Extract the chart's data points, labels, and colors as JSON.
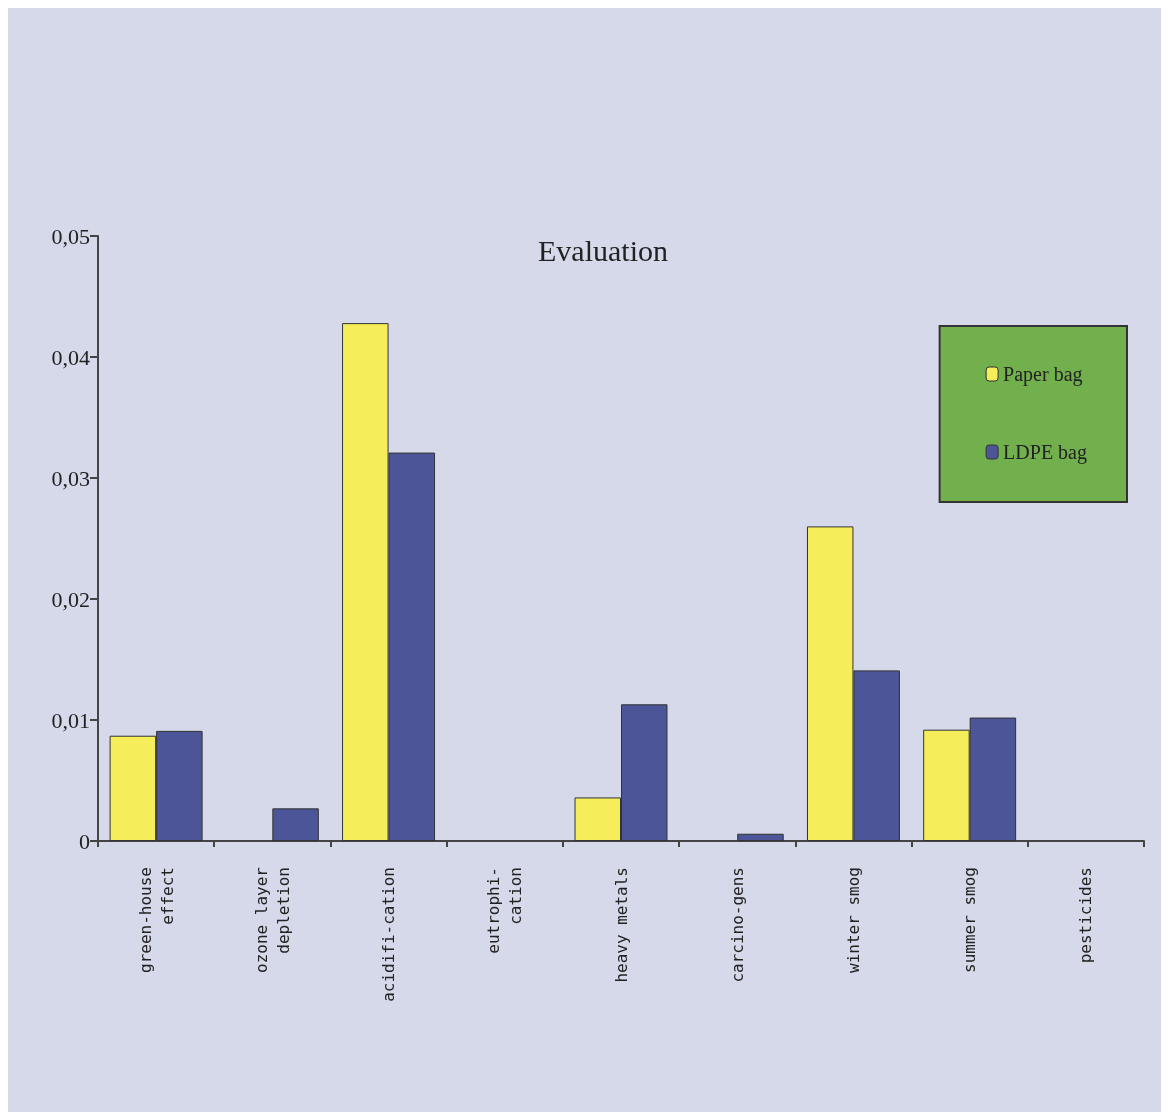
{
  "chart_data": {
    "type": "bar",
    "title": "Evaluation",
    "categories": [
      "green-house\neffect",
      "ozone layer\ndepletion",
      "acidifi-cation",
      "eutrophi-\ncation",
      "heavy metals",
      "carcino-gens",
      "winter smog",
      "summer smog",
      "pesticides"
    ],
    "series": [
      {
        "name": "Paper bag",
        "color": "#f5ee5a",
        "values": [
          0.0087,
          null,
          0.0428,
          null,
          0.0036,
          null,
          0.026,
          0.0092,
          null
        ]
      },
      {
        "name": "LDPE bag",
        "color": "#4b5597",
        "values": [
          0.0091,
          0.0027,
          0.0321,
          null,
          0.0113,
          0.0006,
          0.0141,
          0.0102,
          null
        ]
      }
    ],
    "ylim": [
      0,
      0.05
    ],
    "yticks": [
      {
        "value": 0,
        "label": "0"
      },
      {
        "value": 0.01,
        "label": "0,01"
      },
      {
        "value": 0.02,
        "label": "0,02"
      },
      {
        "value": 0.03,
        "label": "0,03"
      },
      {
        "value": 0.04,
        "label": "0,04"
      },
      {
        "value": 0.05,
        "label": "0,05"
      }
    ],
    "grid": false,
    "legend": "top right"
  }
}
